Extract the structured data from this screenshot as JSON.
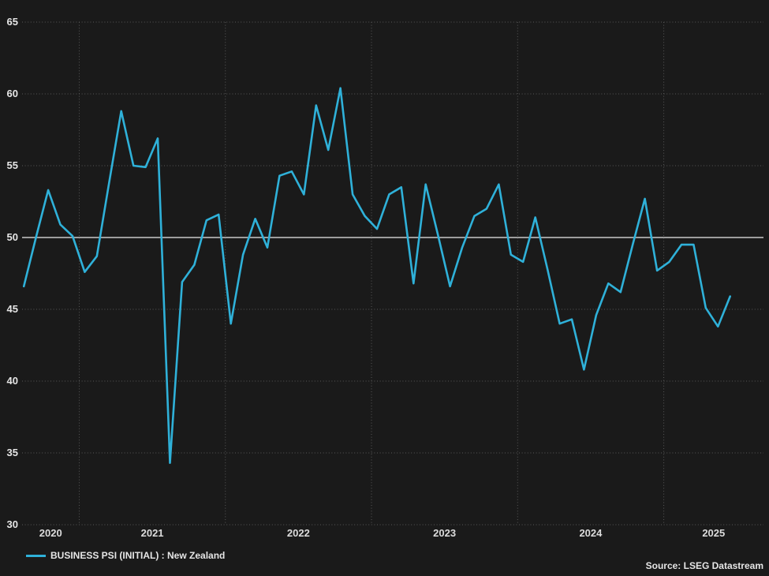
{
  "chart_data": {
    "type": "line",
    "title": "",
    "xlabel": "",
    "ylabel": "",
    "ylim": [
      30,
      65
    ],
    "yticks": [
      65,
      60,
      55,
      50,
      45,
      40,
      35,
      30
    ],
    "reference_line": 50,
    "grid": "dotted",
    "legend_position": "bottom-left",
    "x_year_labels": [
      "2020",
      "2021",
      "2022",
      "2023",
      "2024",
      "2025"
    ],
    "legend_label": "BUSINESS PSI (INITIAL) : New Zealand",
    "source_note": "Source: LSEG Datastream",
    "series": [
      {
        "name": "BUSINESS PSI (INITIAL) : New Zealand",
        "color": "#2fb1d9",
        "months": [
          "2020-08",
          "2020-09",
          "2020-10",
          "2020-11",
          "2020-12",
          "2021-01",
          "2021-02",
          "2021-03",
          "2021-04",
          "2021-05",
          "2021-06",
          "2021-07",
          "2021-08",
          "2021-09",
          "2021-10",
          "2021-11",
          "2021-12",
          "2022-01",
          "2022-02",
          "2022-03",
          "2022-04",
          "2022-05",
          "2022-06",
          "2022-07",
          "2022-08",
          "2022-09",
          "2022-10",
          "2022-11",
          "2022-12",
          "2023-01",
          "2023-02",
          "2023-03",
          "2023-04",
          "2023-05",
          "2023-06",
          "2023-07",
          "2023-08",
          "2023-09",
          "2023-10",
          "2023-11",
          "2023-12",
          "2024-01",
          "2024-02",
          "2024-03",
          "2024-04",
          "2024-05",
          "2024-06",
          "2024-07",
          "2024-08",
          "2024-09",
          "2024-10",
          "2024-11",
          "2024-12",
          "2025-01",
          "2025-02",
          "2025-03",
          "2025-04",
          "2025-05",
          "2025-06"
        ],
        "values": [
          46.6,
          50.0,
          53.3,
          50.9,
          50.1,
          47.6,
          48.7,
          53.8,
          58.8,
          55.0,
          54.9,
          56.9,
          34.3,
          46.9,
          48.1,
          51.2,
          51.6,
          44.0,
          48.8,
          51.3,
          49.3,
          54.3,
          54.6,
          53.0,
          59.2,
          56.1,
          60.4,
          53.0,
          51.5,
          50.6,
          53.0,
          53.5,
          46.8,
          53.7,
          50.2,
          46.6,
          49.3,
          51.5,
          52.0,
          53.7,
          48.8,
          48.3,
          51.4,
          47.8,
          44.0,
          44.3,
          40.8,
          44.6,
          46.8,
          46.2,
          49.5,
          52.7,
          47.7,
          48.3,
          49.5,
          49.5,
          45.1,
          43.8,
          45.9
        ]
      }
    ]
  },
  "colors": {
    "background": "#1a1a1a",
    "line": "#2fb1d9",
    "grid_dotted": "#585858",
    "reference_solid": "#b0b0b0",
    "tick_text": "#e6e6e6"
  }
}
